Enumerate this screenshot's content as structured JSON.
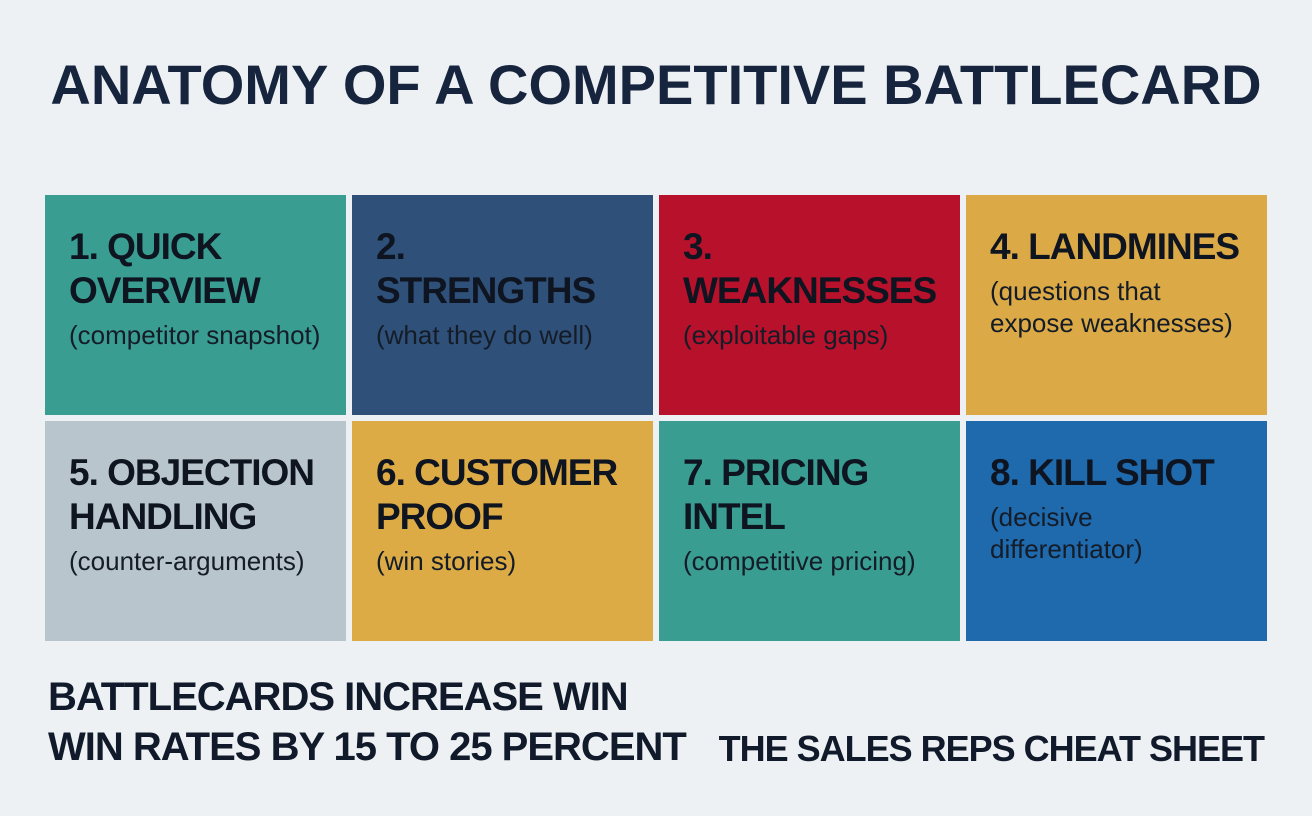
{
  "title": "ANATOMY OF A COMPETITIVE BATTLECARD",
  "cards": [
    {
      "heading": "1. QUICK OVERVIEW",
      "subtitle": "(competitor snapshot)"
    },
    {
      "heading": "2. STRENGTHS",
      "subtitle": "(what they do well)"
    },
    {
      "heading": "3. WEAKNESSES",
      "subtitle": "(exploitable gaps)"
    },
    {
      "heading": "4. LANDMINES",
      "subtitle": "(questions that expose weaknesses)"
    },
    {
      "heading": "5. OBJECTION HANDLING",
      "subtitle": "(counter-arguments)"
    },
    {
      "heading": "6. CUSTOMER PROOF",
      "subtitle": "(win stories)"
    },
    {
      "heading": "7. PRICING INTEL",
      "subtitle": "(competitive pricing)"
    },
    {
      "heading": "8. KILL SHOT",
      "subtitle": "(decisive differentiator)"
    }
  ],
  "footer": {
    "left_lines": [
      "BATTLECARDS INCREASE WIN",
      "WIN RATES BY 15 TO 25 PERCENT"
    ],
    "right": "THE SALES REPS CHEAT SHEET"
  }
}
